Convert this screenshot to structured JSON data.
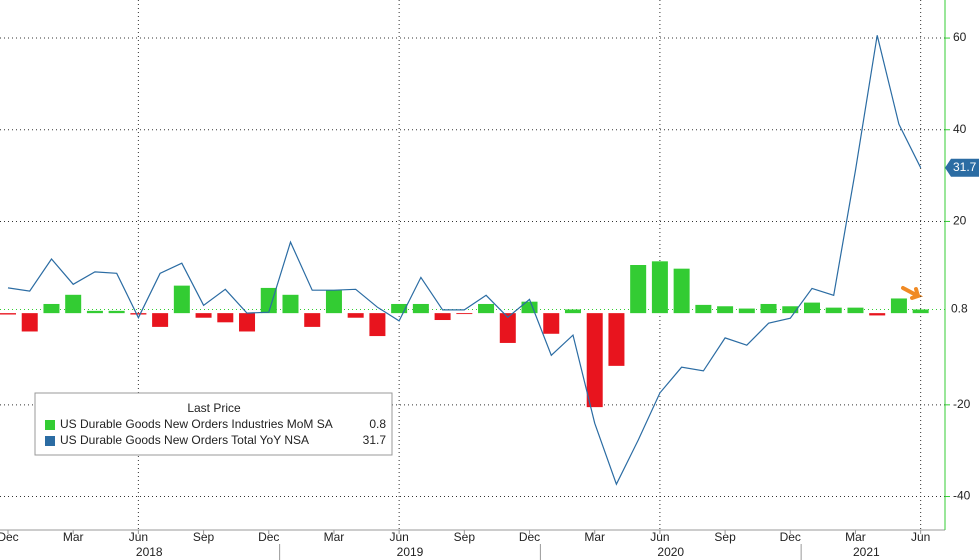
{
  "chart_data": {
    "type": "bar",
    "categories": [
      "Dec",
      null,
      null,
      "Mar",
      null,
      null,
      "Jun",
      null,
      null,
      "Sep",
      null,
      null,
      "Dec",
      null,
      null,
      "Mar",
      null,
      null,
      "Jun",
      null,
      null,
      "Sep",
      null,
      null,
      "Dec",
      null,
      null,
      "Mar",
      null,
      null,
      "Jun",
      null,
      null,
      "Sep",
      null,
      null,
      "Dec",
      null,
      null,
      "Mar",
      null,
      null,
      "Jun"
    ],
    "years": [
      "2018",
      "2019",
      "2020",
      "2021"
    ],
    "series": [
      {
        "name": "US Durable Goods New Orders Industries MoM SA",
        "type": "bar",
        "color": "#33cc33",
        "negative_color": "#e8141e",
        "values": [
          -0.3,
          -4,
          2,
          4,
          0.5,
          0.5,
          -0.3,
          -3,
          6,
          -1,
          -2,
          -4,
          5.5,
          4,
          -3,
          5,
          -1,
          -5,
          2,
          2,
          -1.5,
          -0.2,
          2,
          -6.5,
          2.5,
          -4.5,
          0.8,
          -20.5,
          -11.5,
          10.5,
          11.3,
          9.7,
          1.8,
          1.5,
          1,
          2,
          1.5,
          2.3,
          1.2,
          1.2,
          -0.5,
          3.2,
          0.8
        ]
      },
      {
        "name": "US Durable Goods New Orders Total YoY NSA",
        "type": "line",
        "color": "#2b6ca3",
        "values": [
          5.5,
          4.8,
          11.8,
          6.3,
          9,
          8.7,
          -1,
          8.7,
          10.9,
          1.7,
          5.2,
          0,
          0.2,
          15.5,
          5,
          5,
          5.2,
          1.3,
          -1.7,
          7.8,
          0.7,
          0.7,
          3.9,
          -0.9,
          3,
          -9.2,
          -4.8,
          -24,
          -37.3,
          -27.7,
          -17.4,
          -11.8,
          -12.6,
          -5.4,
          -7,
          -2.2,
          -1.1,
          5.4,
          3.9,
          31.2,
          60.6,
          41.2,
          31.7
        ]
      }
    ],
    "legend_title": "Last Price",
    "ylim": [
      -47.3,
      68.3
    ],
    "yticks": [
      60,
      40,
      20,
      -20,
      -40
    ],
    "grid": true
  }
}
